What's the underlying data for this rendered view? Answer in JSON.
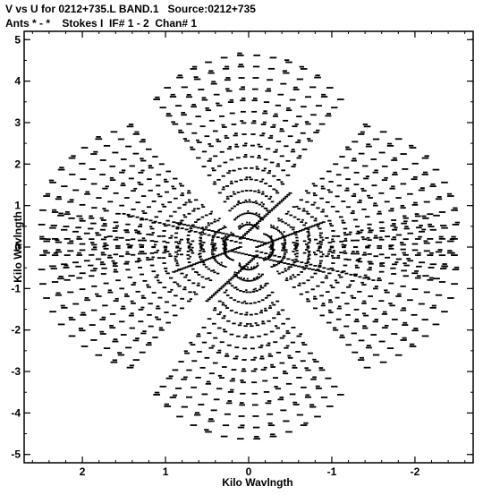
{
  "chart_data": {
    "type": "scatter",
    "title": "V vs U for 0212+735.L BAND.1   Source:0212+735",
    "subtitle": "Ants * - *    Stokes I  IF# 1 - 2  Chan# 1",
    "xlabel": "Kilo Wavlngth",
    "ylabel": "Kilo Wavlngth",
    "xlim": [
      2.7,
      -2.7
    ],
    "ylim": [
      -5.2,
      5.2
    ],
    "x_ticks": [
      "2",
      "1",
      "0",
      "-1",
      "-2"
    ],
    "y_ticks": [
      "5",
      "4",
      "3",
      "2",
      "1",
      "0",
      "-1",
      "-2",
      "-3",
      "-4",
      "-5"
    ],
    "x_reversed": true,
    "grid": false,
    "marker_color": "#000000",
    "arm_angles_deg": [
      90,
      155,
      210,
      270,
      335,
      30
    ],
    "points_per_arm_description": "uv-coverage tracks radiating in six arms"
  }
}
